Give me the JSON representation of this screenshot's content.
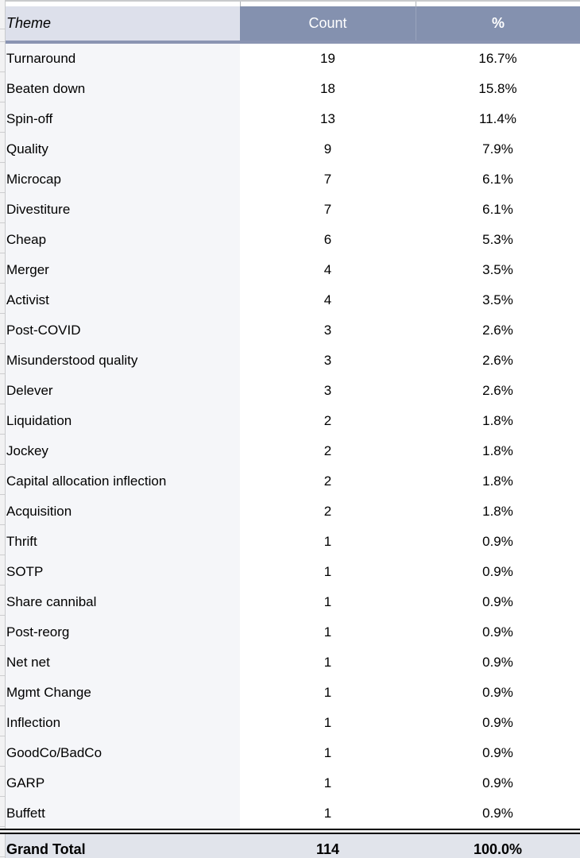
{
  "colors": {
    "slate": "#8491AF",
    "header-light": "#DDE0EB",
    "header-border": "#8A94B2",
    "theme-col-bg": "#F5F6F9",
    "total-bg": "#E1E4EB",
    "grid-gray": "#C8CACC",
    "rail-bg": "#F2F2F3",
    "cell-white": "#FFFFFF",
    "text-black": "#000000"
  },
  "table": {
    "columns": [
      {
        "label": "Theme"
      },
      {
        "label": "Count"
      },
      {
        "label": "%"
      }
    ],
    "rows": [
      {
        "theme": "Turnaround",
        "count": "19",
        "pct": "16.7%"
      },
      {
        "theme": "Beaten down",
        "count": "18",
        "pct": "15.8%"
      },
      {
        "theme": "Spin-off",
        "count": "13",
        "pct": "11.4%"
      },
      {
        "theme": "Quality",
        "count": "9",
        "pct": "7.9%"
      },
      {
        "theme": "Microcap",
        "count": "7",
        "pct": "6.1%"
      },
      {
        "theme": "Divestiture",
        "count": "7",
        "pct": "6.1%"
      },
      {
        "theme": "Cheap",
        "count": "6",
        "pct": "5.3%"
      },
      {
        "theme": "Merger",
        "count": "4",
        "pct": "3.5%"
      },
      {
        "theme": "Activist",
        "count": "4",
        "pct": "3.5%"
      },
      {
        "theme": "Post-COVID",
        "count": "3",
        "pct": "2.6%"
      },
      {
        "theme": "Misunderstood quality",
        "count": "3",
        "pct": "2.6%"
      },
      {
        "theme": "Delever",
        "count": "3",
        "pct": "2.6%"
      },
      {
        "theme": "Liquidation",
        "count": "2",
        "pct": "1.8%"
      },
      {
        "theme": "Jockey",
        "count": "2",
        "pct": "1.8%"
      },
      {
        "theme": "Capital allocation inflection",
        "count": "2",
        "pct": "1.8%"
      },
      {
        "theme": "Acquisition",
        "count": "2",
        "pct": "1.8%"
      },
      {
        "theme": "Thrift",
        "count": "1",
        "pct": "0.9%"
      },
      {
        "theme": "SOTP",
        "count": "1",
        "pct": "0.9%"
      },
      {
        "theme": "Share cannibal",
        "count": "1",
        "pct": "0.9%"
      },
      {
        "theme": "Post-reorg",
        "count": "1",
        "pct": "0.9%"
      },
      {
        "theme": "Net net",
        "count": "1",
        "pct": "0.9%"
      },
      {
        "theme": "Mgmt Change",
        "count": "1",
        "pct": "0.9%"
      },
      {
        "theme": "Inflection",
        "count": "1",
        "pct": "0.9%"
      },
      {
        "theme": "GoodCo/BadCo",
        "count": "1",
        "pct": "0.9%"
      },
      {
        "theme": "GARP",
        "count": "1",
        "pct": "0.9%"
      },
      {
        "theme": "Buffett",
        "count": "1",
        "pct": "0.9%"
      }
    ],
    "total": {
      "label": "Grand Total",
      "count": "114",
      "pct": "100.0%"
    }
  }
}
